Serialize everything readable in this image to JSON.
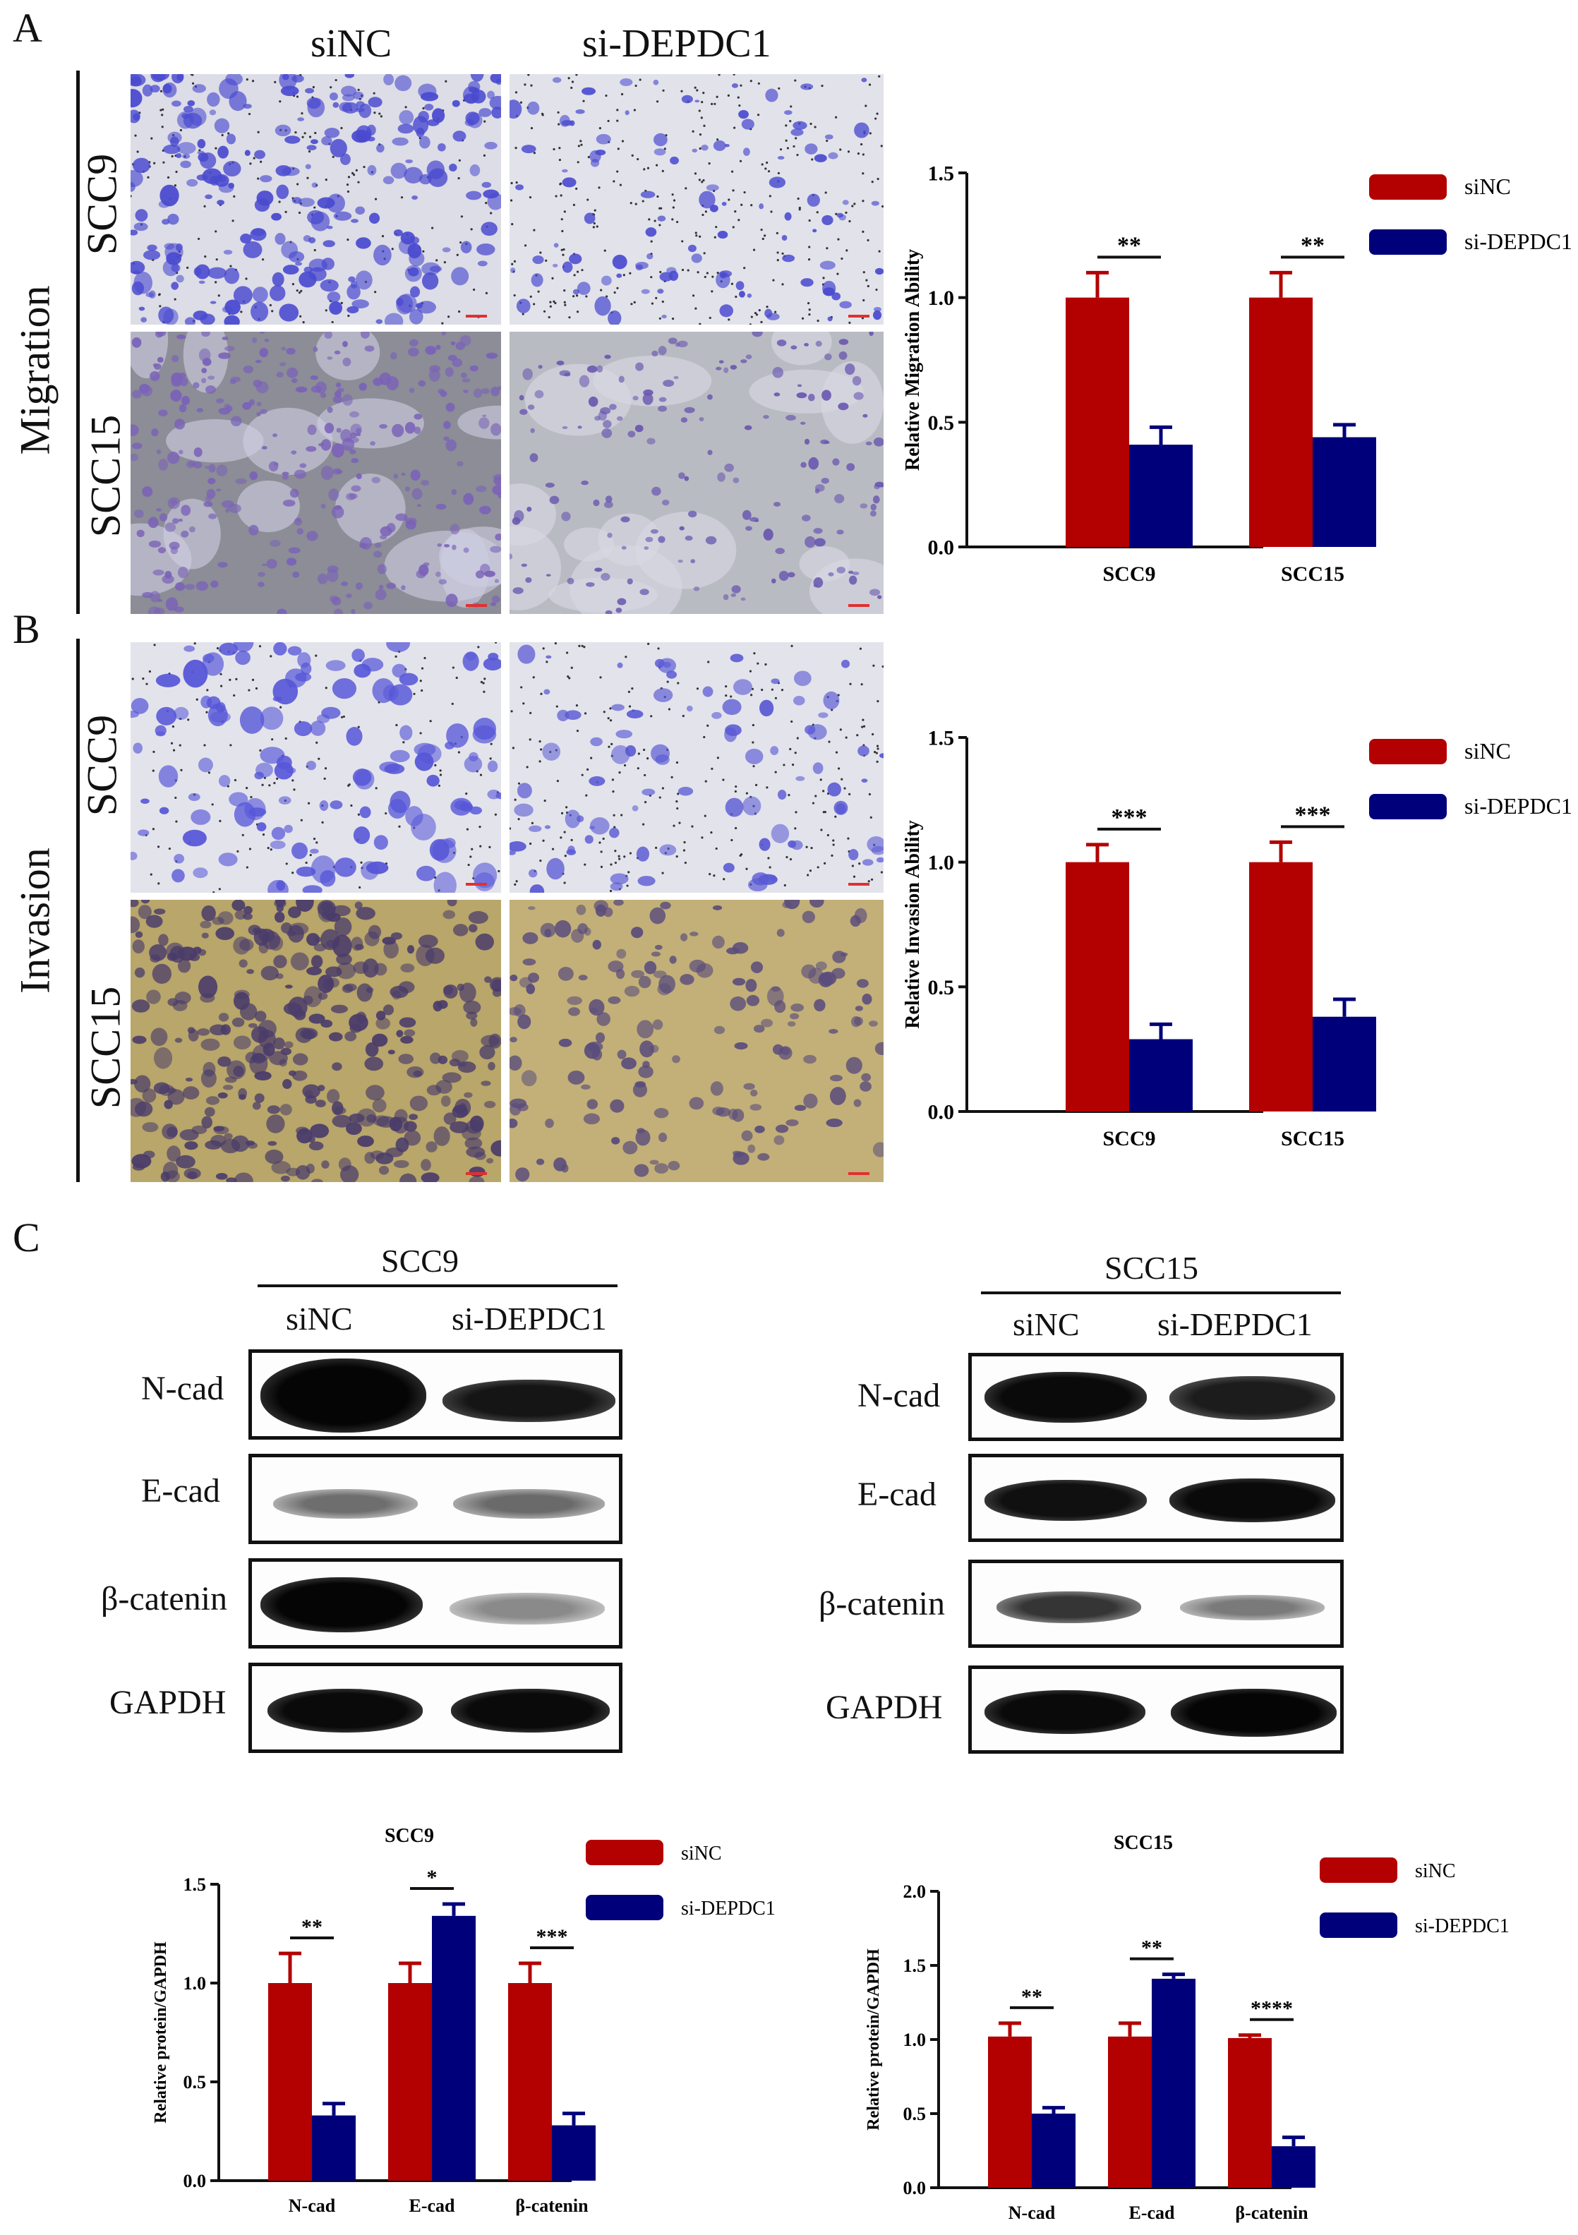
{
  "panels": {
    "A": {
      "letter": "A",
      "side_label": "Migration",
      "columns": [
        "siNC",
        "si-DEPDC1"
      ],
      "rows": [
        "SCC9",
        "SCC15"
      ]
    },
    "B": {
      "letter": "B",
      "side_label": "Invasion",
      "rows": [
        "SCC9",
        "SCC15"
      ]
    },
    "C": {
      "letter": "C",
      "blots": [
        {
          "cell_line": "SCC9",
          "lanes": [
            "siNC",
            "si-DEPDC1"
          ],
          "rows": [
            "N-cad",
            "E-cad",
            "β-catenin",
            "GAPDH"
          ]
        },
        {
          "cell_line": "SCC15",
          "lanes": [
            "siNC",
            "si-DEPDC1"
          ],
          "rows": [
            "N-cad",
            "E-cad",
            "β-catenin",
            "GAPDH"
          ]
        }
      ]
    }
  },
  "colors": {
    "siNC": "#b30000",
    "si-DEPDC1": "#00007a"
  },
  "chart_data": [
    {
      "id": "migration",
      "type": "bar",
      "title": "",
      "ylabel": "Relative Migration Ability",
      "xlabel": "",
      "categories": [
        "SCC9",
        "SCC15"
      ],
      "ylim": [
        0,
        1.5
      ],
      "yticks": [
        "0.0",
        "0.5",
        "1.0",
        "1.5"
      ],
      "series": [
        {
          "name": "siNC",
          "values": [
            1.0,
            1.0
          ],
          "errors": [
            0.1,
            0.1
          ]
        },
        {
          "name": "si-DEPDC1",
          "values": [
            0.41,
            0.44
          ],
          "errors": [
            0.07,
            0.05
          ]
        }
      ],
      "significance": [
        "**",
        "**"
      ],
      "legend": "top-right"
    },
    {
      "id": "invasion",
      "type": "bar",
      "title": "",
      "ylabel": "Relative Invasion Ability",
      "xlabel": "",
      "categories": [
        "SCC9",
        "SCC15"
      ],
      "ylim": [
        0,
        1.5
      ],
      "yticks": [
        "0.0",
        "0.5",
        "1.0",
        "1.5"
      ],
      "series": [
        {
          "name": "siNC",
          "values": [
            1.0,
            1.0
          ],
          "errors": [
            0.07,
            0.08
          ]
        },
        {
          "name": "si-DEPDC1",
          "values": [
            0.29,
            0.38
          ],
          "errors": [
            0.06,
            0.07
          ]
        }
      ],
      "significance": [
        "***",
        "***"
      ],
      "legend": "top-right"
    },
    {
      "id": "scc9-protein",
      "type": "bar",
      "title": "SCC9",
      "ylabel": "Relative protein/GAPDH",
      "xlabel": "",
      "categories": [
        "N-cad",
        "E-cad",
        "β-catenin"
      ],
      "ylim": [
        0,
        1.5
      ],
      "yticks": [
        "0.0",
        "0.5",
        "1.0",
        "1.5"
      ],
      "series": [
        {
          "name": "siNC",
          "values": [
            1.0,
            1.0,
            1.0
          ],
          "errors": [
            0.15,
            0.1,
            0.1
          ]
        },
        {
          "name": "si-DEPDC1",
          "values": [
            0.33,
            1.34,
            0.28
          ],
          "errors": [
            0.06,
            0.06,
            0.06
          ]
        }
      ],
      "significance": [
        "**",
        "*",
        "***"
      ],
      "legend": "top-right"
    },
    {
      "id": "scc15-protein",
      "type": "bar",
      "title": "SCC15",
      "ylabel": "Relative protein/GAPDH",
      "xlabel": "",
      "categories": [
        "N-cad",
        "E-cad",
        "β-catenin"
      ],
      "ylim": [
        0,
        2.0
      ],
      "yticks": [
        "0.0",
        "0.5",
        "1.0",
        "1.5",
        "2.0"
      ],
      "series": [
        {
          "name": "siNC",
          "values": [
            1.02,
            1.02,
            1.01
          ],
          "errors": [
            0.09,
            0.09,
            0.02
          ]
        },
        {
          "name": "si-DEPDC1",
          "values": [
            0.5,
            1.41,
            0.28
          ],
          "errors": [
            0.04,
            0.03,
            0.06
          ]
        }
      ],
      "significance": [
        "**",
        "**",
        "****"
      ],
      "legend": "top-right"
    }
  ]
}
